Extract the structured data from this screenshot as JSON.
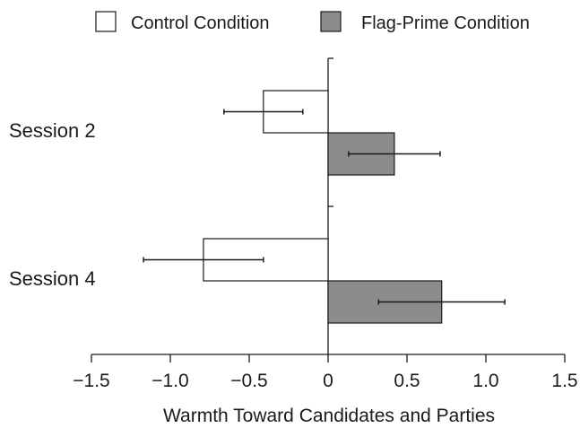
{
  "chart_data": {
    "type": "bar",
    "orientation": "horizontal",
    "title": "",
    "xlabel": "Warmth Toward Candidates and Parties",
    "ylabel": "",
    "xlim": [
      -1.5,
      1.5
    ],
    "xticks": [
      -1.5,
      -1.0,
      -0.5,
      0,
      0.5,
      1.0,
      1.5
    ],
    "xtick_labels": [
      "−1.5",
      "−1.0",
      "−0.5",
      "0",
      "0.5",
      "1.0",
      "1.5"
    ],
    "categories": [
      "Session 2",
      "Session 4"
    ],
    "legend_position": "top",
    "grid": false,
    "series": [
      {
        "name": "Control Condition",
        "color": "#ffffff",
        "values": [
          -0.41,
          -0.79
        ],
        "error_low": [
          -0.66,
          -1.17
        ],
        "error_high": [
          -0.16,
          -0.41
        ]
      },
      {
        "name": "Flag-Prime Condition",
        "color": "#8c8c8c",
        "values": [
          0.42,
          0.72
        ],
        "error_low": [
          0.13,
          0.32
        ],
        "error_high": [
          0.71,
          1.12
        ]
      }
    ]
  }
}
